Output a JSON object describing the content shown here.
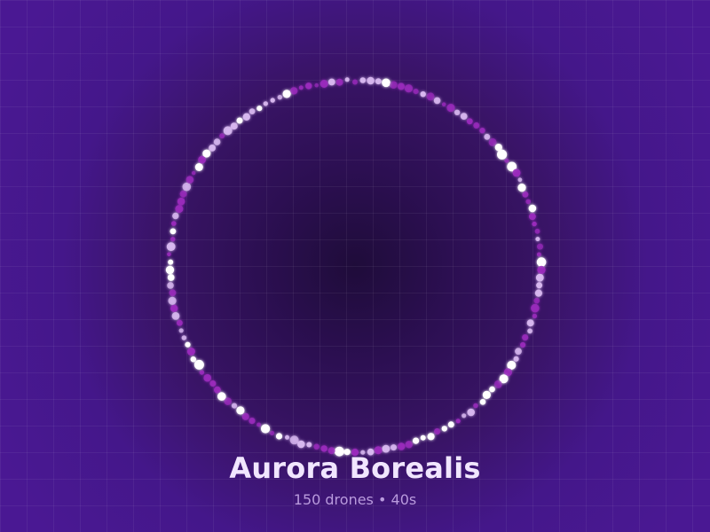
{
  "show": {
    "title": "Aurora Borealis",
    "drone_count": "150 drones",
    "separator": "•",
    "duration": "40s"
  },
  "colors": {
    "background": "#4a1893",
    "center_glow": "#1f0c3a",
    "drone_white": "#ffffff",
    "drone_lilac": "#d8b8f0",
    "drone_magenta": "#9b2bbd"
  },
  "formation": {
    "shape": "ring"
  }
}
